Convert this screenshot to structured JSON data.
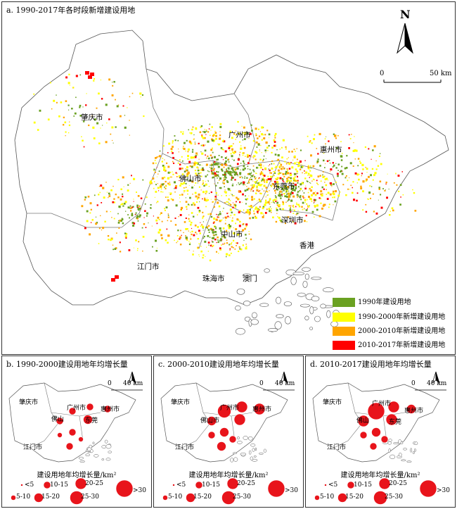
{
  "panel_a": {
    "title": "a. 1990-2017年各时段新增建设用地",
    "north": "N",
    "scale_zero": "0",
    "scale_end": "50 km",
    "cities": [
      "肇庆市",
      "广州市",
      "惠州市",
      "佛山市",
      "东莞市",
      "深圳市",
      "中山市",
      "香港",
      "江门市",
      "珠海市",
      "澳门"
    ],
    "legend": [
      {
        "label": "1990年建设用地",
        "color": "#6aa121"
      },
      {
        "label": "1990-2000年新增建设用地",
        "color": "#ffff00"
      },
      {
        "label": "2000-2010年新增建设用地",
        "color": "#ffa500"
      },
      {
        "label": "2010-2017年新增建设用地",
        "color": "#ff0000"
      }
    ]
  },
  "bubble_panels": [
    {
      "title": "b. 1990-2000建设用地年均增长量",
      "scale_zero": "0",
      "scale_end": "40 km",
      "cities": [
        "肇庆市",
        "广州市",
        "惠州市",
        "佛山",
        "东莞",
        "江门市"
      ],
      "bubble_classes": [
        2,
        2,
        2,
        2,
        3,
        2,
        1,
        1,
        2
      ]
    },
    {
      "title": "c. 2000-2010建设用地年均增长量",
      "scale_zero": "0",
      "scale_end": "40 km",
      "cities": [
        "肇庆市",
        "广州市",
        "惠州市",
        "佛山市",
        "江门市"
      ],
      "bubble_classes": [
        5,
        4,
        4,
        3,
        4,
        3,
        2,
        2,
        3
      ]
    },
    {
      "title": "d. 2010-2017建设用地年均增长量",
      "scale_zero": "0",
      "scale_end": "40 km",
      "cities": [
        "肇庆市",
        "广州市",
        "惠州市",
        "佛山",
        "东莞",
        "江门市"
      ],
      "bubble_classes": [
        6,
        4,
        3,
        4,
        4,
        3,
        2,
        2,
        2
      ]
    }
  ],
  "bubble_legend": {
    "title": "建设用地年均增长量/km²",
    "classes": [
      "<5",
      "5-10",
      "10-15",
      "15-20",
      "20-25",
      "25-30",
      ">30"
    ]
  },
  "colors": {
    "built_1990": "#6aa121",
    "new_1990_2000": "#ffff00",
    "new_2000_2010": "#ffa500",
    "new_2010_2017": "#ff0000",
    "bubble": "#e8141b"
  }
}
